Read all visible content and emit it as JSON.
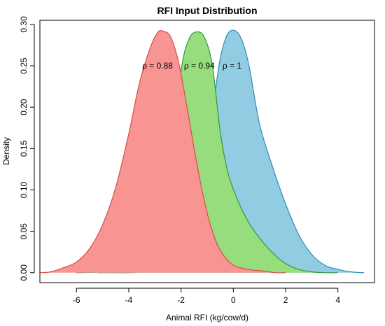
{
  "chart_data": {
    "type": "area",
    "title": "RFI Input Distribution",
    "xlabel": "Animal RFI (kg/cow/d)",
    "ylabel": "Density",
    "xlim": [
      -7.4,
      5.4
    ],
    "ylim": [
      -0.012,
      0.305
    ],
    "xticks": [
      -6,
      -4,
      -2,
      0,
      2,
      4
    ],
    "xtick_labels": [
      "-6",
      "-4",
      "-2",
      "0",
      "2",
      "4"
    ],
    "yticks": [
      0.0,
      0.05,
      0.1,
      0.15,
      0.2,
      0.25,
      0.3
    ],
    "ytick_labels": [
      "0.00",
      "0.05",
      "0.10",
      "0.15",
      "0.20",
      "0.25",
      "0.30"
    ],
    "grid": false,
    "legend": "none",
    "series": [
      {
        "label": "ρ = 1",
        "fill": "#91CCE3",
        "stroke": "#2E8DB5",
        "x": [
          -5.2,
          -4.5,
          -4.0,
          -3.5,
          -3.0,
          -2.5,
          -2.0,
          -1.5,
          -1.0,
          -0.6,
          -0.3,
          0.0,
          0.3,
          0.6,
          1.0,
          1.5,
          2.0,
          2.5,
          3.0,
          3.5,
          4.0,
          4.5,
          5.0
        ],
        "y": [
          0.0,
          0.0,
          0.0,
          0.001,
          0.003,
          0.009,
          0.022,
          0.052,
          0.135,
          0.24,
          0.283,
          0.293,
          0.283,
          0.25,
          0.18,
          0.128,
          0.083,
          0.046,
          0.022,
          0.009,
          0.004,
          0.001,
          0.0
        ]
      },
      {
        "label": "ρ = 0.94",
        "fill": "#97DD7E",
        "stroke": "#2E9A38",
        "x": [
          -6.0,
          -5.0,
          -4.5,
          -4.0,
          -3.5,
          -3.0,
          -2.5,
          -2.0,
          -1.7,
          -1.4,
          -1.1,
          -0.8,
          -0.5,
          -0.2,
          0.2,
          0.6,
          1.0,
          1.5,
          2.0,
          2.5,
          3.0,
          3.5,
          4.0
        ],
        "y": [
          0.0,
          0.001,
          0.004,
          0.012,
          0.03,
          0.068,
          0.13,
          0.245,
          0.282,
          0.291,
          0.284,
          0.25,
          0.17,
          0.12,
          0.085,
          0.06,
          0.042,
          0.024,
          0.011,
          0.004,
          0.001,
          0.0,
          0.0
        ]
      },
      {
        "label": "ρ = 0.88",
        "fill": "#F89592",
        "stroke": "#D94B4B",
        "x": [
          -7.4,
          -7.0,
          -6.5,
          -6.0,
          -5.5,
          -5.0,
          -4.5,
          -4.0,
          -3.6,
          -3.2,
          -2.9,
          -2.7,
          -2.4,
          -2.1,
          -1.8,
          -1.5,
          -1.2,
          -0.9,
          -0.6,
          -0.3,
          0.0,
          0.4,
          0.8,
          1.2,
          1.6,
          2.0
        ],
        "y": [
          0.0,
          0.001,
          0.006,
          0.013,
          0.029,
          0.058,
          0.103,
          0.168,
          0.228,
          0.27,
          0.29,
          0.292,
          0.285,
          0.255,
          0.205,
          0.15,
          0.1,
          0.06,
          0.033,
          0.018,
          0.009,
          0.005,
          0.003,
          0.002,
          0.0,
          0.0
        ]
      }
    ],
    "annotations": [
      {
        "text": "ρ = 0.88",
        "x": -2.9,
        "y": 0.25
      },
      {
        "text": "ρ = 0.94",
        "x": -1.3,
        "y": 0.25
      },
      {
        "text": "ρ = 1",
        "x": -0.05,
        "y": 0.25
      }
    ]
  }
}
